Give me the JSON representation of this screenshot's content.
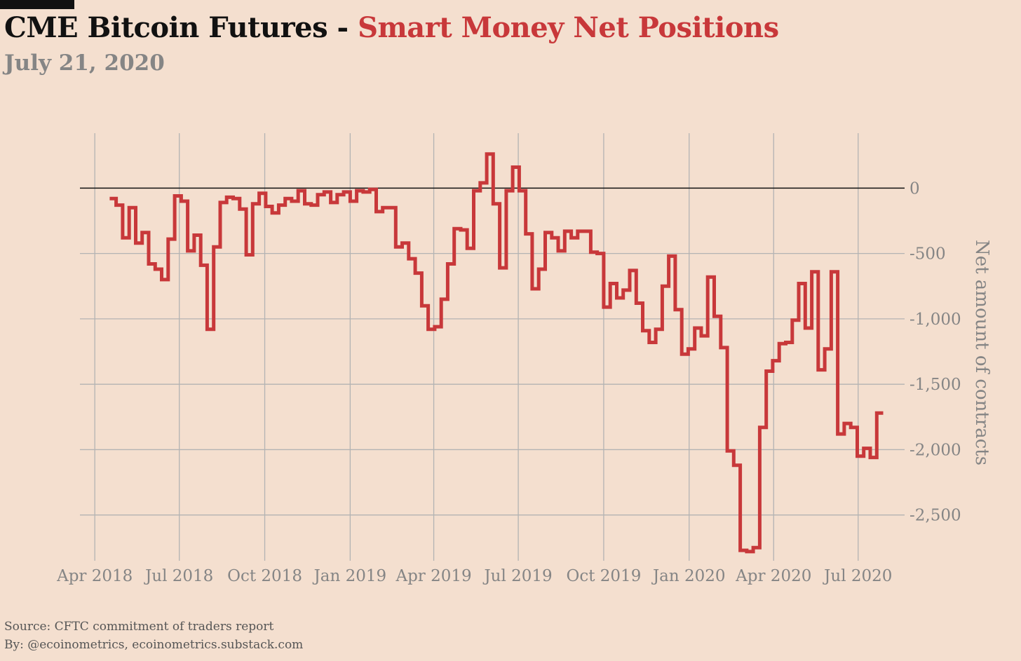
{
  "header": {
    "title_black": "CME Bitcoin Futures - ",
    "title_red": "Smart Money Net Positions",
    "subtitle": "July 21, 2020"
  },
  "colors": {
    "background": "#f4dfcf",
    "title": "#111111",
    "accent": "#c8383a",
    "grid": "#b3b3b3",
    "zero_line": "#111111",
    "muted_text": "#858585"
  },
  "footer": {
    "source": "Source: CFTC commitment of traders report",
    "by": "By: @ecoinometrics, ecoinometrics.substack.com"
  },
  "chart_data": {
    "type": "line",
    "step": true,
    "xlabel": "",
    "ylabel": "Net amount of contracts",
    "y_axis_side": "right",
    "ylim": [
      -2850,
      420
    ],
    "xlim": [
      "2018-03-16",
      "2020-08-20"
    ],
    "x_ticks": [
      {
        "date": "2018-04-01",
        "label": "Apr 2018"
      },
      {
        "date": "2018-07-01",
        "label": "Jul 2018"
      },
      {
        "date": "2018-10-01",
        "label": "Oct 2018"
      },
      {
        "date": "2019-01-01",
        "label": "Jan 2019"
      },
      {
        "date": "2019-04-01",
        "label": "Apr 2019"
      },
      {
        "date": "2019-07-01",
        "label": "Jul 2019"
      },
      {
        "date": "2019-10-01",
        "label": "Oct 2019"
      },
      {
        "date": "2020-01-01",
        "label": "Jan 2020"
      },
      {
        "date": "2020-04-01",
        "label": "Apr 2020"
      },
      {
        "date": "2020-07-01",
        "label": "Jul 2020"
      }
    ],
    "y_ticks": [
      {
        "value": 0,
        "label": "0"
      },
      {
        "value": -500,
        "label": "-500"
      },
      {
        "value": -1000,
        "label": "-1,000"
      },
      {
        "value": -1500,
        "label": "-1,500"
      },
      {
        "value": -2000,
        "label": "-2,000"
      },
      {
        "value": -2500,
        "label": "-2,500"
      }
    ],
    "grid": true,
    "zero_line": true,
    "series": [
      {
        "name": "",
        "color": "#c8383a",
        "x": [
          "2018-04-17",
          "2018-04-24",
          "2018-05-01",
          "2018-05-08",
          "2018-05-15",
          "2018-05-22",
          "2018-05-29",
          "2018-06-05",
          "2018-06-12",
          "2018-06-19",
          "2018-06-26",
          "2018-07-03",
          "2018-07-10",
          "2018-07-17",
          "2018-07-24",
          "2018-07-31",
          "2018-08-07",
          "2018-08-14",
          "2018-08-21",
          "2018-08-28",
          "2018-09-04",
          "2018-09-11",
          "2018-09-18",
          "2018-09-25",
          "2018-10-02",
          "2018-10-09",
          "2018-10-16",
          "2018-10-23",
          "2018-10-30",
          "2018-11-06",
          "2018-11-13",
          "2018-11-20",
          "2018-11-27",
          "2018-12-04",
          "2018-12-11",
          "2018-12-18",
          "2018-12-25",
          "2019-01-01",
          "2019-01-08",
          "2019-01-15",
          "2019-01-22",
          "2019-01-29",
          "2019-02-05",
          "2019-02-12",
          "2019-02-19",
          "2019-02-26",
          "2019-03-05",
          "2019-03-12",
          "2019-03-19",
          "2019-03-26",
          "2019-04-02",
          "2019-04-09",
          "2019-04-16",
          "2019-04-23",
          "2019-04-30",
          "2019-05-07",
          "2019-05-14",
          "2019-05-21",
          "2019-05-28",
          "2019-06-04",
          "2019-06-11",
          "2019-06-18",
          "2019-06-25",
          "2019-07-02",
          "2019-07-09",
          "2019-07-16",
          "2019-07-23",
          "2019-07-30",
          "2019-08-06",
          "2019-08-13",
          "2019-08-20",
          "2019-08-27",
          "2019-09-03",
          "2019-09-10",
          "2019-09-17",
          "2019-09-24",
          "2019-10-01",
          "2019-10-08",
          "2019-10-15",
          "2019-10-22",
          "2019-10-29",
          "2019-11-05",
          "2019-11-12",
          "2019-11-19",
          "2019-11-26",
          "2019-12-03",
          "2019-12-10",
          "2019-12-17",
          "2019-12-24",
          "2019-12-31",
          "2020-01-07",
          "2020-01-14",
          "2020-01-21",
          "2020-01-28",
          "2020-02-04",
          "2020-02-11",
          "2020-02-18",
          "2020-02-25",
          "2020-03-03",
          "2020-03-10",
          "2020-03-17",
          "2020-03-24",
          "2020-03-31",
          "2020-04-07",
          "2020-04-14",
          "2020-04-21",
          "2020-04-28",
          "2020-05-05",
          "2020-05-12",
          "2020-05-19",
          "2020-05-26",
          "2020-06-02",
          "2020-06-09",
          "2020-06-16",
          "2020-06-23",
          "2020-06-30",
          "2020-07-07",
          "2020-07-14",
          "2020-07-21"
        ],
        "y": [
          -80,
          -130,
          -380,
          -150,
          -420,
          -340,
          -580,
          -620,
          -700,
          -390,
          -60,
          -100,
          -480,
          -360,
          -590,
          -1080,
          -450,
          -110,
          -70,
          -80,
          -160,
          -510,
          -120,
          -40,
          -140,
          -190,
          -130,
          -80,
          -100,
          -20,
          -120,
          -130,
          -50,
          -30,
          -110,
          -50,
          -30,
          -100,
          -20,
          -30,
          -10,
          -180,
          -150,
          -150,
          -450,
          -420,
          -540,
          -650,
          -900,
          -1080,
          -1060,
          -850,
          -580,
          -310,
          -320,
          -460,
          -20,
          40,
          260,
          -120,
          -610,
          -20,
          160,
          -20,
          -350,
          -770,
          -620,
          -340,
          -380,
          -480,
          -330,
          -380,
          -330,
          -330,
          -490,
          -500,
          -910,
          -730,
          -840,
          -780,
          -630,
          -880,
          -1090,
          -1180,
          -1080,
          -750,
          -520,
          -930,
          -1270,
          -1230,
          -1070,
          -1130,
          -680,
          -980,
          -1220,
          -2010,
          -2120,
          -2770,
          -2780,
          -2750,
          -1830,
          -1400,
          -1320,
          -1190,
          -1180,
          -1010,
          -730,
          -1070,
          -640,
          -1390,
          -1230,
          -640,
          -1880,
          -1800,
          -1830,
          -2050,
          -1990,
          -2060,
          -1720
        ]
      }
    ]
  }
}
